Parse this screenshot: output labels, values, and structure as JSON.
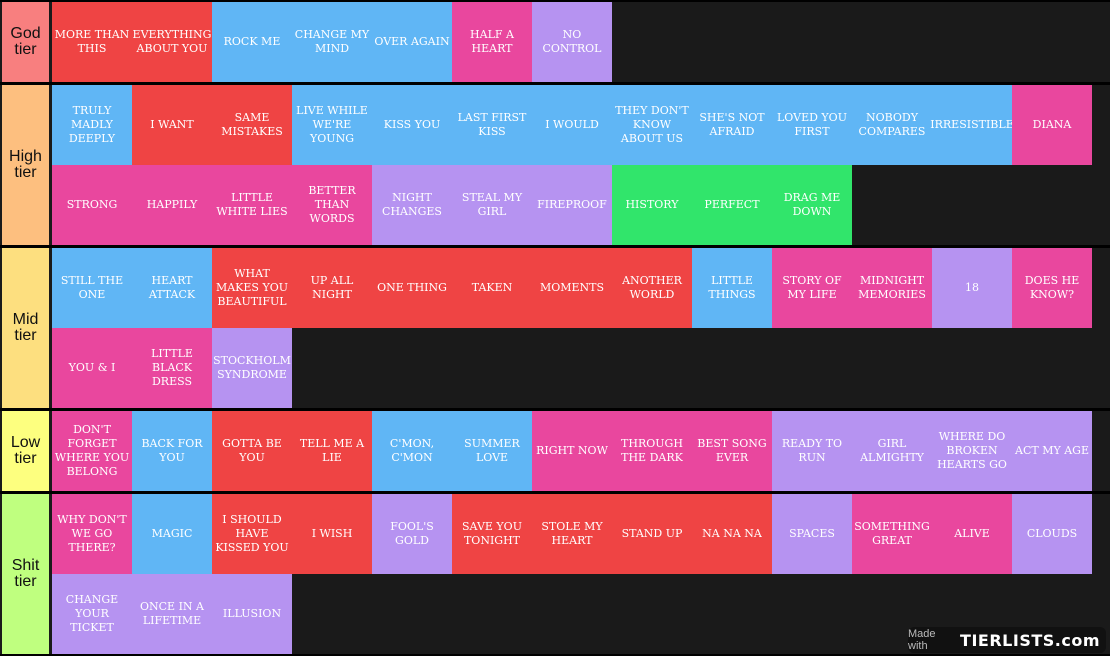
{
  "colors": {
    "red": "#ef4444",
    "blue": "#60b6f5",
    "pink": "#e9479e",
    "purple": "#b693f1",
    "green": "#31e56b",
    "background": "#1a1a1a"
  },
  "tiers": [
    {
      "label": "God tier",
      "color": "#f87f7f",
      "items": [
        {
          "name": "MORE THAN THIS",
          "color": "red"
        },
        {
          "name": "EVERYTHING ABOUT YOU",
          "color": "red"
        },
        {
          "name": "ROCK ME",
          "color": "blue"
        },
        {
          "name": "CHANGE MY MIND",
          "color": "blue"
        },
        {
          "name": "OVER AGAIN",
          "color": "blue"
        },
        {
          "name": "HALF A HEART",
          "color": "pink"
        },
        {
          "name": "NO CONTROL",
          "color": "purple"
        }
      ]
    },
    {
      "label": "High tier",
      "color": "#fdbf7f",
      "items": [
        {
          "name": "TRULY MADLY DEEPLY",
          "color": "blue"
        },
        {
          "name": "I WANT",
          "color": "red"
        },
        {
          "name": "SAME MISTAKES",
          "color": "red"
        },
        {
          "name": "LIVE WHILE WE'RE YOUNG",
          "color": "blue"
        },
        {
          "name": "KISS YOU",
          "color": "blue"
        },
        {
          "name": "LAST FIRST KISS",
          "color": "blue"
        },
        {
          "name": "I WOULD",
          "color": "blue"
        },
        {
          "name": "THEY DON'T KNOW ABOUT US",
          "color": "blue"
        },
        {
          "name": "SHE'S NOT AFRAID",
          "color": "blue"
        },
        {
          "name": "LOVED YOU FIRST",
          "color": "blue"
        },
        {
          "name": "NOBODY COMPARES",
          "color": "blue"
        },
        {
          "name": "IRRESISTIBLE",
          "color": "blue"
        },
        {
          "name": "DIANA",
          "color": "pink"
        },
        {
          "name": "STRONG",
          "color": "pink"
        },
        {
          "name": "HAPPILY",
          "color": "pink"
        },
        {
          "name": "LITTLE WHITE LIES",
          "color": "pink"
        },
        {
          "name": "BETTER THAN WORDS",
          "color": "pink"
        },
        {
          "name": "NIGHT CHANGES",
          "color": "purple"
        },
        {
          "name": "STEAL MY GIRL",
          "color": "purple"
        },
        {
          "name": "FIREPROOF",
          "color": "purple"
        },
        {
          "name": "HISTORY",
          "color": "green"
        },
        {
          "name": "PERFECT",
          "color": "green"
        },
        {
          "name": "DRAG ME DOWN",
          "color": "green"
        }
      ]
    },
    {
      "label": "Mid tier",
      "color": "#fddf7f",
      "items": [
        {
          "name": "STILL THE ONE",
          "color": "blue"
        },
        {
          "name": "HEART ATTACK",
          "color": "blue"
        },
        {
          "name": "WHAT MAKES YOU BEAUTIFUL",
          "color": "red"
        },
        {
          "name": "UP ALL NIGHT",
          "color": "red"
        },
        {
          "name": "ONE THING",
          "color": "red"
        },
        {
          "name": "TAKEN",
          "color": "red"
        },
        {
          "name": "MOMENTS",
          "color": "red"
        },
        {
          "name": "ANOTHER WORLD",
          "color": "red"
        },
        {
          "name": "LITTLE THINGS",
          "color": "blue"
        },
        {
          "name": "STORY OF MY LIFE",
          "color": "pink"
        },
        {
          "name": "MIDNIGHT MEMORIES",
          "color": "pink"
        },
        {
          "name": "18",
          "color": "purple"
        },
        {
          "name": "DOES HE KNOW?",
          "color": "pink"
        },
        {
          "name": "YOU & I",
          "color": "pink"
        },
        {
          "name": "LITTLE BLACK DRESS",
          "color": "pink"
        },
        {
          "name": "STOCKHOLM SYNDROME",
          "color": "purple"
        }
      ]
    },
    {
      "label": "Low tier",
      "color": "#fdff7f",
      "items": [
        {
          "name": "DON'T FORGET WHERE YOU BELONG",
          "color": "pink"
        },
        {
          "name": "BACK FOR YOU",
          "color": "blue"
        },
        {
          "name": "GOTTA BE YOU",
          "color": "red"
        },
        {
          "name": "TELL ME A LIE",
          "color": "red"
        },
        {
          "name": "C'MON, C'MON",
          "color": "blue"
        },
        {
          "name": "SUMMER LOVE",
          "color": "blue"
        },
        {
          "name": "RIGHT NOW",
          "color": "pink"
        },
        {
          "name": "THROUGH THE DARK",
          "color": "pink"
        },
        {
          "name": "BEST SONG EVER",
          "color": "pink"
        },
        {
          "name": "READY TO RUN",
          "color": "purple"
        },
        {
          "name": "GIRL ALMIGHTY",
          "color": "purple"
        },
        {
          "name": "WHERE DO BROKEN HEARTS GO",
          "color": "purple"
        },
        {
          "name": "ACT MY AGE",
          "color": "purple"
        }
      ]
    },
    {
      "label": "Shit tier",
      "color": "#bfff7f",
      "items": [
        {
          "name": "WHY DON'T WE GO THERE?",
          "color": "pink"
        },
        {
          "name": "MAGIC",
          "color": "blue"
        },
        {
          "name": "I SHOULD HAVE KISSED YOU",
          "color": "red"
        },
        {
          "name": "I WISH",
          "color": "red"
        },
        {
          "name": "FOOL'S GOLD",
          "color": "purple"
        },
        {
          "name": "SAVE YOU TONIGHT",
          "color": "red"
        },
        {
          "name": "STOLE MY HEART",
          "color": "red"
        },
        {
          "name": "STAND UP",
          "color": "red"
        },
        {
          "name": "NA NA NA",
          "color": "red"
        },
        {
          "name": "SPACES",
          "color": "purple"
        },
        {
          "name": "SOMETHING GREAT",
          "color": "pink"
        },
        {
          "name": "ALIVE",
          "color": "pink"
        },
        {
          "name": "CLOUDS",
          "color": "purple"
        },
        {
          "name": "CHANGE YOUR TICKET",
          "color": "purple"
        },
        {
          "name": "ONCE IN A LIFETIME",
          "color": "purple"
        },
        {
          "name": "ILLUSION",
          "color": "purple"
        }
      ]
    }
  ],
  "watermark": {
    "prefix": "Made with",
    "logo": "TIERLISTS.com"
  }
}
